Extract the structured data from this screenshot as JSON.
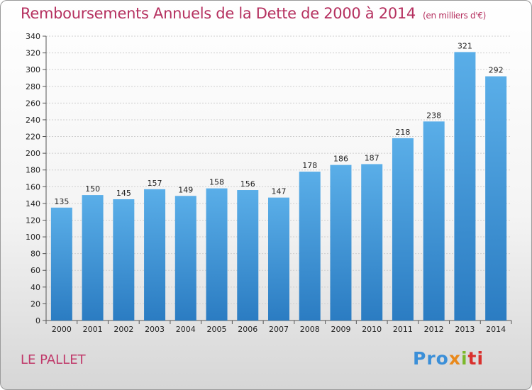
{
  "header": {
    "title": "Remboursements Annuels de la Dette de 2000 à 2014",
    "unit": "(en milliers d'€)"
  },
  "footer": {
    "town": "LE PALLET",
    "brand": {
      "p1": "Pro",
      "p2": "x",
      "p3": "i",
      "p4": "ti"
    }
  },
  "chart_data": {
    "type": "bar",
    "categories": [
      "2000",
      "2001",
      "2002",
      "2003",
      "2004",
      "2005",
      "2006",
      "2007",
      "2008",
      "2009",
      "2010",
      "2011",
      "2012",
      "2013",
      "2014"
    ],
    "values": [
      135,
      150,
      145,
      157,
      149,
      158,
      156,
      147,
      178,
      186,
      187,
      218,
      238,
      321,
      292
    ],
    "title": "Remboursements Annuels de la Dette de 2000 à 2014",
    "ylim": [
      0,
      340
    ],
    "yticks": [
      0,
      20,
      40,
      60,
      80,
      100,
      120,
      140,
      160,
      180,
      200,
      220,
      240,
      260,
      280,
      300,
      320,
      340
    ],
    "grid": true,
    "bar_color_top": "#5aaee8",
    "bar_color_bottom": "#2b7cc2"
  }
}
